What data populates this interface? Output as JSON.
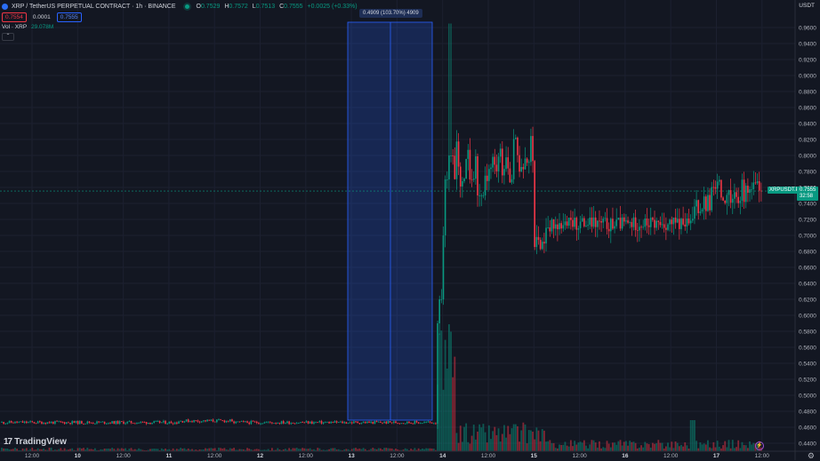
{
  "header": {
    "title": "XRP / TetherUS PERPETUAL CONTRACT · 1h · BINANCE",
    "ohlc": {
      "o_label": "O",
      "o": "0.7529",
      "h_label": "H",
      "h": "0.7572",
      "l_label": "L",
      "l": "0.7513",
      "c_label": "C",
      "c": "0.7555",
      "change": "+0.0025 (+0.33%)"
    },
    "quote_currency": "USDT"
  },
  "trade": {
    "sell": "0.7554",
    "spread": "0.0001",
    "buy": "0.7555"
  },
  "volume": {
    "label": "Vol · XRP",
    "value": "29.078M"
  },
  "measure": {
    "text": "0.4909 (103.70%) 4909"
  },
  "price_axis": {
    "labels": [
      "0.9600",
      "0.9400",
      "0.9200",
      "0.9000",
      "0.8800",
      "0.8600",
      "0.8400",
      "0.8200",
      "0.8000",
      "0.7800",
      "0.7600",
      "0.7400",
      "0.7200",
      "0.7000",
      "0.6800",
      "0.6600",
      "0.6400",
      "0.6200",
      "0.6000",
      "0.5800",
      "0.5600",
      "0.5400",
      "0.5200",
      "0.5000",
      "0.4800",
      "0.4600",
      "0.4400"
    ],
    "last_price": "0.7555",
    "symbol_tag": "XRPUSDT.P",
    "countdown": "32:58"
  },
  "time_axis": {
    "labels": [
      "12:00",
      "10",
      "12:00",
      "11",
      "12:00",
      "12",
      "12:00",
      "13",
      "12:00",
      "14",
      "12:00",
      "15",
      "12:00",
      "16",
      "12:00",
      "17",
      "12:00"
    ]
  },
  "branding": {
    "logo_text": "TradingView",
    "logo_mark": "17"
  },
  "colors": {
    "up": "#089981",
    "down": "#f23645",
    "background": "#131722",
    "accent": "#2962ff"
  },
  "chart_data": {
    "type": "candlestick",
    "ylim": [
      0.43,
      0.97
    ],
    "xlabels_days": [
      "10",
      "11",
      "12",
      "13",
      "14",
      "15",
      "16",
      "17"
    ],
    "phases": [
      {
        "from": "10 00:00",
        "to": "14 00:00",
        "level": 0.466,
        "note": "flat"
      },
      {
        "from": "14 00:00",
        "to": "14 04:00",
        "range": [
          0.466,
          0.96
        ]
      },
      {
        "from": "14 04:00",
        "to": "15 00:00",
        "range": [
          0.74,
          0.84
        ]
      },
      {
        "from": "15 00:00",
        "to": "17 00:00",
        "range": [
          0.67,
          0.73
        ]
      },
      {
        "from": "17 00:00",
        "to": "17 14:00",
        "range": [
          0.72,
          0.79
        ]
      }
    ],
    "last": 0.7555
  },
  "icons": {
    "settings": "gear-icon",
    "collapse": "chevron-up-icon",
    "alert": "alert-icon"
  }
}
